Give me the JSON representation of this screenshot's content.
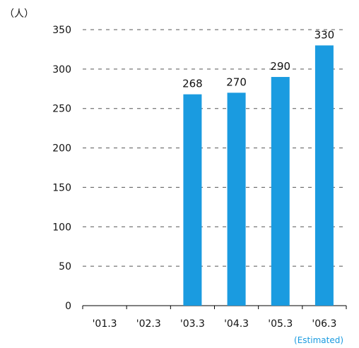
{
  "chart_data": {
    "type": "bar",
    "unit_label": "（人）",
    "categories": [
      "'01.3",
      "'02.3",
      "'03.3",
      "'04.3",
      "'05.3",
      "'06.3"
    ],
    "values": [
      null,
      null,
      268,
      270,
      290,
      330
    ],
    "data_labels": [
      "",
      "",
      "268",
      "270",
      "290",
      "330"
    ],
    "yticks": [
      "0",
      "50",
      "100",
      "150",
      "200",
      "250",
      "300",
      "350"
    ],
    "ylim": [
      0,
      350
    ],
    "grid": "dashed-horizontal",
    "bar_color": "#1a9be0",
    "annotation": "(Estimated)"
  }
}
